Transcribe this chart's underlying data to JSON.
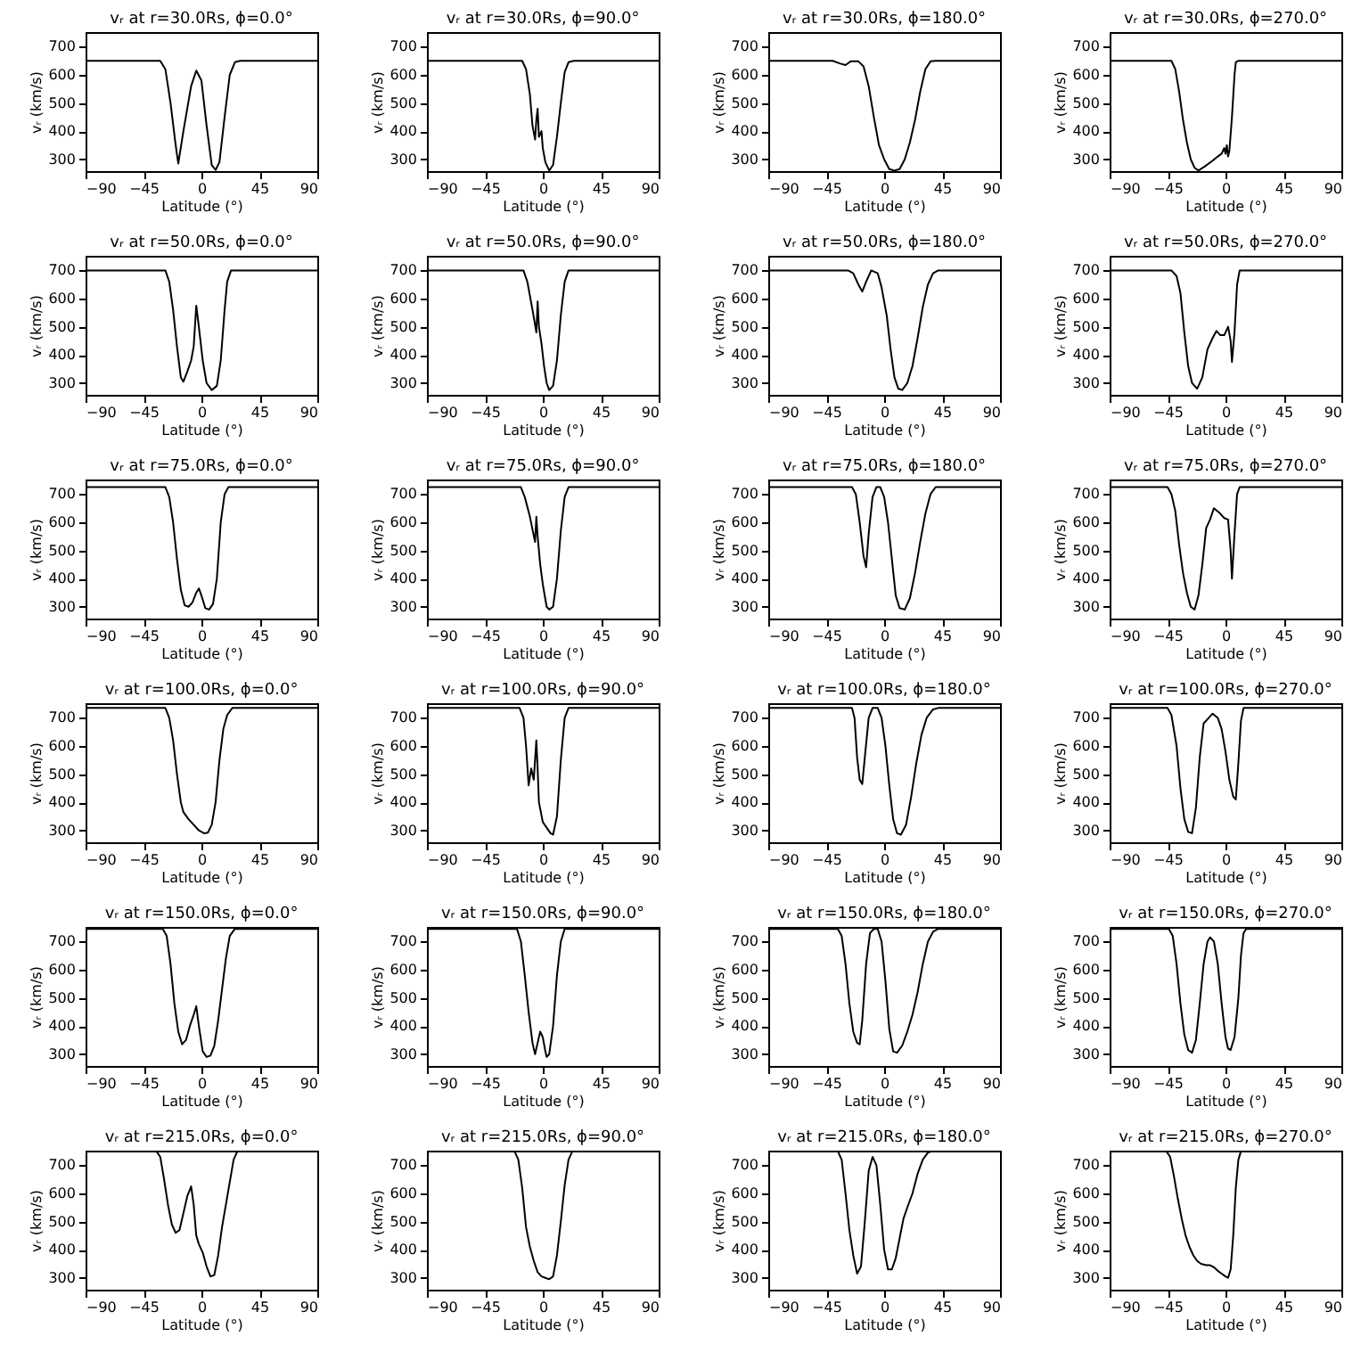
{
  "chart_data": [
    {
      "type": "line",
      "title": "vᵣ at r=30.0Rs, ϕ=0.0°",
      "xlabel": "Latitude (°)",
      "ylabel": "vᵣ (km/s)",
      "color": "#000000",
      "xlim": [
        -90,
        90
      ],
      "xticks": [
        -90,
        -45,
        0,
        45,
        90
      ],
      "ylim": [
        258,
        752
      ],
      "yticks": [
        300,
        400,
        500,
        600,
        700
      ],
      "x": [
        -90,
        -32,
        -28,
        -24,
        -20,
        -18,
        -14,
        -8,
        -4,
        0,
        4,
        8,
        11,
        14,
        18,
        22,
        26,
        30,
        90
      ],
      "values": [
        650,
        650,
        620,
        500,
        350,
        285,
        400,
        560,
        615,
        580,
        420,
        280,
        262,
        290,
        450,
        600,
        645,
        650,
        650
      ]
    },
    {
      "type": "line",
      "title": "vᵣ at r=30.0Rs, ϕ=90.0°",
      "xlabel": "Latitude (°)",
      "ylabel": "vᵣ (km/s)",
      "color": "#000000",
      "xlim": [
        -90,
        90
      ],
      "xticks": [
        -90,
        -45,
        0,
        45,
        90
      ],
      "ylim": [
        258,
        752
      ],
      "yticks": [
        300,
        400,
        500,
        600,
        700
      ],
      "x": [
        -90,
        -16,
        -13,
        -10,
        -8,
        -6,
        -5,
        -4,
        -3,
        -1,
        0,
        2,
        5,
        8,
        11,
        14,
        17,
        20,
        24,
        90
      ],
      "values": [
        650,
        650,
        620,
        530,
        420,
        370,
        440,
        480,
        380,
        400,
        340,
        290,
        260,
        280,
        380,
        500,
        610,
        645,
        650,
        650
      ]
    },
    {
      "type": "line",
      "title": "vᵣ at r=30.0Rs, ϕ=180.0°",
      "xlabel": "Latitude (°)",
      "ylabel": "vᵣ (km/s)",
      "color": "#000000",
      "xlim": [
        -90,
        90
      ],
      "xticks": [
        -90,
        -45,
        0,
        45,
        90
      ],
      "ylim": [
        258,
        752
      ],
      "yticks": [
        300,
        400,
        500,
        600,
        700
      ],
      "x": [
        -90,
        -40,
        -34,
        -30,
        -26,
        -20,
        -16,
        -12,
        -8,
        -4,
        0,
        4,
        8,
        12,
        16,
        20,
        24,
        28,
        32,
        36,
        40,
        90
      ],
      "values": [
        650,
        650,
        640,
        635,
        648,
        648,
        630,
        560,
        450,
        350,
        300,
        265,
        260,
        265,
        300,
        360,
        440,
        540,
        620,
        648,
        650,
        650
      ]
    },
    {
      "type": "line",
      "title": "vᵣ at r=30.0Rs, ϕ=270.0°",
      "xlabel": "Latitude (°)",
      "ylabel": "vᵣ (km/s)",
      "color": "#000000",
      "xlim": [
        -90,
        90
      ],
      "xticks": [
        -90,
        -45,
        0,
        45,
        90
      ],
      "ylim": [
        258,
        752
      ],
      "yticks": [
        300,
        400,
        500,
        600,
        700
      ],
      "x": [
        -90,
        -42,
        -39,
        -36,
        -33,
        -30,
        -27,
        -24,
        -21,
        -16,
        -10,
        -6,
        -3,
        -1,
        0,
        1,
        2,
        3,
        5,
        7,
        8,
        10,
        90
      ],
      "values": [
        650,
        650,
        620,
        540,
        440,
        360,
        300,
        270,
        260,
        275,
        295,
        310,
        320,
        340,
        320,
        350,
        310,
        330,
        450,
        600,
        645,
        650,
        650
      ]
    },
    {
      "type": "line",
      "title": "vᵣ at r=50.0Rs, ϕ=0.0°",
      "xlabel": "Latitude (°)",
      "ylabel": "vᵣ (km/s)",
      "color": "#000000",
      "xlim": [
        -90,
        90
      ],
      "xticks": [
        -90,
        -45,
        0,
        45,
        90
      ],
      "ylim": [
        258,
        752
      ],
      "yticks": [
        300,
        400,
        500,
        600,
        700
      ],
      "x": [
        -90,
        -28,
        -25,
        -22,
        -19,
        -16,
        -14,
        -11,
        -8,
        -6,
        -4,
        -2,
        1,
        4,
        8,
        12,
        15,
        18,
        20,
        23,
        90
      ],
      "values": [
        700,
        700,
        660,
        560,
        430,
        320,
        305,
        340,
        380,
        430,
        575,
        500,
        380,
        300,
        275,
        290,
        380,
        560,
        660,
        700,
        700
      ]
    },
    {
      "type": "line",
      "title": "vᵣ at r=50.0Rs, ϕ=90.0°",
      "xlabel": "Latitude (°)",
      "ylabel": "vᵣ (km/s)",
      "color": "#000000",
      "xlim": [
        -90,
        90
      ],
      "xticks": [
        -90,
        -45,
        0,
        45,
        90
      ],
      "ylim": [
        258,
        752
      ],
      "yticks": [
        300,
        400,
        500,
        600,
        700
      ],
      "x": [
        -90,
        -15,
        -12,
        -8,
        -5,
        -4,
        -3,
        -1,
        1,
        3,
        5,
        8,
        11,
        14,
        17,
        20,
        90
      ],
      "values": [
        700,
        700,
        660,
        560,
        480,
        590,
        500,
        440,
        360,
        300,
        275,
        290,
        380,
        540,
        660,
        700,
        700
      ]
    },
    {
      "type": "line",
      "title": "vᵣ at r=50.0Rs, ϕ=180.0°",
      "xlabel": "Latitude (°)",
      "ylabel": "vᵣ (km/s)",
      "color": "#000000",
      "xlim": [
        -90,
        90
      ],
      "xticks": [
        -90,
        -45,
        0,
        45,
        90
      ],
      "ylim": [
        258,
        752
      ],
      "yticks": [
        300,
        400,
        500,
        600,
        700
      ],
      "x": [
        -90,
        -28,
        -24,
        -20,
        -17,
        -14,
        -10,
        -5,
        -2,
        2,
        5,
        8,
        11,
        14,
        18,
        22,
        26,
        30,
        34,
        38,
        42,
        90
      ],
      "values": [
        700,
        700,
        690,
        650,
        625,
        660,
        700,
        690,
        640,
        540,
        420,
        320,
        280,
        275,
        300,
        360,
        460,
        570,
        650,
        690,
        700,
        700
      ]
    },
    {
      "type": "line",
      "title": "vᵣ at r=50.0Rs, ϕ=270.0°",
      "xlabel": "Latitude (°)",
      "ylabel": "vᵣ (km/s)",
      "color": "#000000",
      "xlim": [
        -90,
        90
      ],
      "xticks": [
        -90,
        -45,
        0,
        45,
        90
      ],
      "ylim": [
        258,
        752
      ],
      "yticks": [
        300,
        400,
        500,
        600,
        700
      ],
      "x": [
        -90,
        -42,
        -38,
        -35,
        -32,
        -29,
        -26,
        -22,
        -18,
        -14,
        -10,
        -7,
        -4,
        -1,
        2,
        4,
        5,
        7,
        9,
        11,
        90
      ],
      "values": [
        700,
        700,
        680,
        620,
        480,
        360,
        300,
        280,
        320,
        420,
        460,
        485,
        470,
        470,
        500,
        450,
        375,
        480,
        650,
        700,
        700
      ]
    },
    {
      "type": "line",
      "title": "vᵣ at r=75.0Rs, ϕ=0.0°",
      "xlabel": "Latitude (°)",
      "ylabel": "vᵣ (km/s)",
      "color": "#000000",
      "xlim": [
        -90,
        90
      ],
      "xticks": [
        -90,
        -45,
        0,
        45,
        90
      ],
      "ylim": [
        258,
        752
      ],
      "yticks": [
        300,
        400,
        500,
        600,
        700
      ],
      "x": [
        -90,
        -28,
        -25,
        -22,
        -19,
        -16,
        -13,
        -10,
        -7,
        -4,
        -2,
        0,
        3,
        6,
        9,
        12,
        15,
        18,
        21,
        90
      ],
      "values": [
        725,
        725,
        690,
        600,
        470,
        360,
        305,
        300,
        315,
        350,
        365,
        340,
        295,
        290,
        310,
        400,
        600,
        700,
        725,
        725
      ]
    },
    {
      "type": "line",
      "title": "vᵣ at r=75.0Rs, ϕ=90.0°",
      "xlabel": "Latitude (°)",
      "ylabel": "vᵣ (km/s)",
      "color": "#000000",
      "xlim": [
        -90,
        90
      ],
      "xticks": [
        -90,
        -45,
        0,
        45,
        90
      ],
      "ylim": [
        258,
        752
      ],
      "yticks": [
        300,
        400,
        500,
        600,
        700
      ],
      "x": [
        -90,
        -17,
        -14,
        -10,
        -6,
        -5,
        -4,
        -2,
        0,
        3,
        5,
        8,
        11,
        14,
        17,
        20,
        90
      ],
      "values": [
        725,
        725,
        690,
        620,
        530,
        620,
        550,
        450,
        380,
        300,
        290,
        300,
        400,
        570,
        690,
        725,
        725
      ]
    },
    {
      "type": "line",
      "title": "vᵣ at r=75.0Rs, ϕ=180.0°",
      "xlabel": "Latitude (°)",
      "ylabel": "vᵣ (km/s)",
      "color": "#000000",
      "xlim": [
        -90,
        90
      ],
      "xticks": [
        -90,
        -45,
        0,
        45,
        90
      ],
      "ylim": [
        258,
        752
      ],
      "yticks": [
        300,
        400,
        500,
        600,
        700
      ],
      "x": [
        -90,
        -25,
        -22,
        -19,
        -16,
        -14,
        -12,
        -9,
        -6,
        -3,
        0,
        3,
        6,
        9,
        12,
        16,
        20,
        24,
        28,
        32,
        36,
        40,
        90
      ],
      "values": [
        725,
        725,
        700,
        600,
        480,
        440,
        560,
        690,
        725,
        725,
        690,
        600,
        470,
        340,
        295,
        290,
        330,
        420,
        530,
        630,
        700,
        725,
        725
      ]
    },
    {
      "type": "line",
      "title": "vᵣ at r=75.0Rs, ϕ=270.0°",
      "xlabel": "Latitude (°)",
      "ylabel": "vᵣ (km/s)",
      "color": "#000000",
      "xlim": [
        -90,
        90
      ],
      "xticks": [
        -90,
        -45,
        0,
        45,
        90
      ],
      "ylim": [
        258,
        752
      ],
      "yticks": [
        300,
        400,
        500,
        600,
        700
      ],
      "x": [
        -90,
        -45,
        -42,
        -39,
        -36,
        -33,
        -30,
        -27,
        -24,
        -21,
        -18,
        -15,
        -12,
        -9,
        -5,
        -1,
        2,
        4,
        5,
        7,
        9,
        11,
        90
      ],
      "values": [
        725,
        725,
        700,
        640,
        520,
        420,
        350,
        300,
        290,
        340,
        450,
        580,
        610,
        650,
        635,
        615,
        610,
        500,
        400,
        560,
        700,
        725,
        725
      ]
    },
    {
      "type": "line",
      "title": "vᵣ at r=100.0Rs, ϕ=0.0°",
      "xlabel": "Latitude (°)",
      "ylabel": "vᵣ (km/s)",
      "color": "#000000",
      "xlim": [
        -90,
        90
      ],
      "xticks": [
        -90,
        -45,
        0,
        45,
        90
      ],
      "ylim": [
        258,
        752
      ],
      "yticks": [
        300,
        400,
        500,
        600,
        700
      ],
      "x": [
        -90,
        -28,
        -25,
        -22,
        -19,
        -16,
        -14,
        -10,
        -6,
        -2,
        2,
        5,
        8,
        11,
        14,
        17,
        20,
        24,
        90
      ],
      "values": [
        735,
        735,
        700,
        620,
        500,
        400,
        365,
        340,
        320,
        300,
        290,
        292,
        320,
        400,
        550,
        660,
        710,
        735,
        735
      ]
    },
    {
      "type": "line",
      "title": "vᵣ at r=100.0Rs, ϕ=90.0°",
      "xlabel": "Latitude (°)",
      "ylabel": "vᵣ (km/s)",
      "color": "#000000",
      "xlim": [
        -90,
        90
      ],
      "xticks": [
        -90,
        -45,
        0,
        45,
        90
      ],
      "ylim": [
        258,
        752
      ],
      "yticks": [
        300,
        400,
        500,
        600,
        700
      ],
      "x": [
        -90,
        -18,
        -15,
        -13,
        -11,
        -9,
        -7,
        -5,
        -4,
        -3,
        0,
        3,
        6,
        8,
        11,
        14,
        17,
        20,
        90
      ],
      "values": [
        735,
        735,
        700,
        600,
        460,
        520,
        480,
        620,
        520,
        400,
        330,
        310,
        290,
        285,
        350,
        550,
        700,
        735,
        735
      ]
    },
    {
      "type": "line",
      "title": "vᵣ at r=100.0Rs, ϕ=180.0°",
      "xlabel": "Latitude (°)",
      "ylabel": "vᵣ (km/s)",
      "color": "#000000",
      "xlim": [
        -90,
        90
      ],
      "xticks": [
        -90,
        -45,
        0,
        45,
        90
      ],
      "ylim": [
        258,
        752
      ],
      "yticks": [
        300,
        400,
        500,
        600,
        700
      ],
      "x": [
        -90,
        -25,
        -23,
        -21,
        -19,
        -17,
        -15,
        -12,
        -9,
        -5,
        -2,
        1,
        4,
        7,
        10,
        13,
        17,
        21,
        25,
        29,
        33,
        38,
        42,
        90
      ],
      "values": [
        735,
        735,
        700,
        560,
        480,
        465,
        560,
        700,
        735,
        735,
        700,
        600,
        460,
        340,
        290,
        285,
        320,
        420,
        540,
        640,
        700,
        730,
        735,
        735
      ]
    },
    {
      "type": "line",
      "title": "vᵣ at r=100.0Rs, ϕ=270.0°",
      "xlabel": "Latitude (°)",
      "ylabel": "vᵣ (km/s)",
      "color": "#000000",
      "xlim": [
        -90,
        90
      ],
      "xticks": [
        -90,
        -45,
        0,
        45,
        90
      ],
      "ylim": [
        258,
        752
      ],
      "yticks": [
        300,
        400,
        500,
        600,
        700
      ],
      "x": [
        -90,
        -45,
        -42,
        -38,
        -35,
        -32,
        -29,
        -26,
        -23,
        -20,
        -17,
        -13,
        -10,
        -6,
        -3,
        0,
        3,
        6,
        8,
        10,
        12,
        14,
        90
      ],
      "values": [
        735,
        735,
        710,
        600,
        450,
        340,
        295,
        290,
        380,
        560,
        680,
        700,
        715,
        700,
        660,
        580,
        480,
        420,
        410,
        540,
        690,
        735,
        735
      ]
    },
    {
      "type": "line",
      "title": "vᵣ at r=150.0Rs, ϕ=0.0°",
      "xlabel": "Latitude (°)",
      "ylabel": "vᵣ (km/s)",
      "color": "#000000",
      "xlim": [
        -90,
        90
      ],
      "xticks": [
        -90,
        -45,
        0,
        45,
        90
      ],
      "ylim": [
        258,
        752
      ],
      "yticks": [
        300,
        400,
        500,
        600,
        700
      ],
      "x": [
        -90,
        -30,
        -27,
        -24,
        -21,
        -18,
        -15,
        -12,
        -9,
        -6,
        -4,
        -2,
        1,
        4,
        7,
        10,
        13,
        16,
        19,
        22,
        26,
        90
      ],
      "values": [
        745,
        745,
        720,
        620,
        480,
        380,
        335,
        350,
        400,
        440,
        470,
        400,
        310,
        290,
        295,
        330,
        420,
        530,
        640,
        720,
        745,
        745
      ]
    },
    {
      "type": "line",
      "title": "vᵣ at r=150.0Rs, ϕ=90.0°",
      "xlabel": "Latitude (°)",
      "ylabel": "vᵣ (km/s)",
      "color": "#000000",
      "xlim": [
        -90,
        90
      ],
      "xticks": [
        -90,
        -45,
        0,
        45,
        90
      ],
      "ylim": [
        258,
        752
      ],
      "yticks": [
        300,
        400,
        500,
        600,
        700
      ],
      "x": [
        -90,
        -20,
        -17,
        -14,
        -11,
        -8,
        -6,
        -4,
        -2,
        0,
        2,
        3,
        5,
        8,
        11,
        14,
        17,
        90
      ],
      "values": [
        745,
        745,
        700,
        580,
        450,
        340,
        300,
        340,
        380,
        360,
        310,
        290,
        300,
        400,
        580,
        700,
        745,
        745
      ]
    },
    {
      "type": "line",
      "title": "vᵣ at r=150.0Rs, ϕ=180.0°",
      "xlabel": "Latitude (°)",
      "ylabel": "vᵣ (km/s)",
      "color": "#000000",
      "xlim": [
        -90,
        90
      ],
      "xticks": [
        -90,
        -45,
        0,
        45,
        90
      ],
      "ylim": [
        258,
        752
      ],
      "yticks": [
        300,
        400,
        500,
        600,
        700
      ],
      "x": [
        -90,
        -36,
        -33,
        -30,
        -27,
        -24,
        -21,
        -19,
        -17,
        -14,
        -11,
        -8,
        -5,
        -2,
        1,
        4,
        7,
        10,
        14,
        18,
        22,
        26,
        30,
        34,
        38,
        42,
        90
      ],
      "values": [
        745,
        745,
        720,
        620,
        480,
        380,
        340,
        335,
        420,
        620,
        730,
        745,
        745,
        700,
        560,
        390,
        310,
        305,
        330,
        380,
        440,
        520,
        620,
        700,
        735,
        745,
        745
      ]
    },
    {
      "type": "line",
      "title": "vᵣ at r=150.0Rs, ϕ=270.0°",
      "xlabel": "Latitude (°)",
      "ylabel": "vᵣ (km/s)",
      "color": "#000000",
      "xlim": [
        -90,
        90
      ],
      "xticks": [
        -90,
        -45,
        0,
        45,
        90
      ],
      "ylim": [
        258,
        752
      ],
      "yticks": [
        300,
        400,
        500,
        600,
        700
      ],
      "x": [
        -90,
        -44,
        -41,
        -38,
        -35,
        -32,
        -29,
        -26,
        -23,
        -20,
        -17,
        -14,
        -12,
        -9,
        -6,
        -3,
        0,
        2,
        4,
        7,
        10,
        12,
        14,
        16,
        90
      ],
      "values": [
        745,
        745,
        720,
        620,
        480,
        370,
        315,
        305,
        350,
        480,
        620,
        700,
        715,
        700,
        620,
        480,
        360,
        320,
        315,
        360,
        500,
        650,
        730,
        745,
        745
      ]
    },
    {
      "type": "line",
      "title": "vᵣ at r=215.0Rs, ϕ=0.0°",
      "xlabel": "Latitude (°)",
      "ylabel": "vᵣ (km/s)",
      "color": "#000000",
      "xlim": [
        -90,
        90
      ],
      "xticks": [
        -90,
        -45,
        0,
        45,
        90
      ],
      "ylim": [
        258,
        752
      ],
      "yticks": [
        300,
        400,
        500,
        600,
        700
      ],
      "x": [
        -90,
        -35,
        -32,
        -29,
        -26,
        -23,
        -20,
        -17,
        -14,
        -11,
        -8,
        -6,
        -4,
        -2,
        1,
        4,
        7,
        10,
        13,
        16,
        19,
        22,
        25,
        28,
        90
      ],
      "values": [
        750,
        750,
        730,
        650,
        560,
        490,
        460,
        470,
        530,
        590,
        625,
        560,
        450,
        420,
        390,
        340,
        305,
        310,
        380,
        480,
        560,
        640,
        720,
        750,
        750
      ]
    },
    {
      "type": "line",
      "title": "vᵣ at r=215.0Rs, ϕ=90.0°",
      "xlabel": "Latitude (°)",
      "ylabel": "vᵣ (km/s)",
      "color": "#000000",
      "xlim": [
        -90,
        90
      ],
      "xticks": [
        -90,
        -45,
        0,
        45,
        90
      ],
      "ylim": [
        258,
        752
      ],
      "yticks": [
        300,
        400,
        500,
        600,
        700
      ],
      "x": [
        -90,
        -22,
        -19,
        -16,
        -13,
        -10,
        -7,
        -4,
        -1,
        2,
        5,
        8,
        11,
        14,
        17,
        20,
        23,
        90
      ],
      "values": [
        750,
        750,
        720,
        620,
        480,
        410,
        360,
        320,
        305,
        300,
        295,
        305,
        380,
        500,
        630,
        720,
        750,
        750
      ]
    },
    {
      "type": "line",
      "title": "vᵣ at r=215.0Rs, ϕ=180.0°",
      "xlabel": "Latitude (°)",
      "ylabel": "vᵣ (km/s)",
      "color": "#000000",
      "xlim": [
        -90,
        90
      ],
      "xticks": [
        -90,
        -45,
        0,
        45,
        90
      ],
      "ylim": [
        258,
        752
      ],
      "yticks": [
        300,
        400,
        500,
        600,
        700
      ],
      "x": [
        -90,
        -36,
        -33,
        -30,
        -27,
        -24,
        -21,
        -18,
        -15,
        -12,
        -9,
        -6,
        -3,
        0,
        3,
        6,
        9,
        12,
        15,
        18,
        22,
        26,
        30,
        34,
        37,
        90
      ],
      "values": [
        750,
        750,
        720,
        600,
        470,
        380,
        315,
        340,
        500,
        680,
        730,
        700,
        560,
        400,
        330,
        330,
        370,
        440,
        510,
        550,
        600,
        670,
        720,
        745,
        750,
        750
      ]
    },
    {
      "type": "line",
      "title": "vᵣ at r=215.0Rs, ϕ=270.0°",
      "xlabel": "Latitude (°)",
      "ylabel": "vᵣ (km/s)",
      "color": "#000000",
      "xlim": [
        -90,
        90
      ],
      "xticks": [
        -90,
        -45,
        0,
        45,
        90
      ],
      "ylim": [
        258,
        752
      ],
      "yticks": [
        300,
        400,
        500,
        600,
        700
      ],
      "x": [
        -90,
        -46,
        -43,
        -40,
        -37,
        -34,
        -31,
        -28,
        -25,
        -22,
        -19,
        -15,
        -12,
        -9,
        -6,
        -3,
        0,
        2,
        4,
        6,
        8,
        10,
        12,
        90
      ],
      "values": [
        750,
        750,
        730,
        660,
        580,
        510,
        450,
        410,
        380,
        360,
        350,
        345,
        345,
        338,
        325,
        315,
        305,
        300,
        330,
        450,
        620,
        720,
        750,
        750
      ]
    }
  ]
}
